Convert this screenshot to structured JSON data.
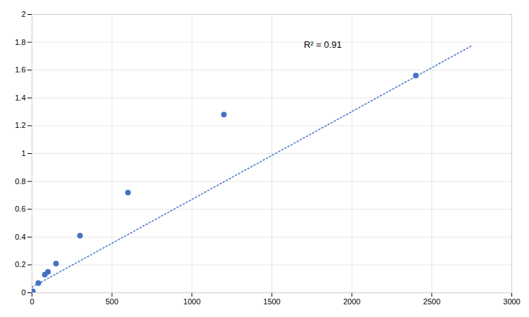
{
  "chart_data": {
    "type": "scatter",
    "x": [
      5,
      40,
      80,
      100,
      150,
      300,
      600,
      1200,
      2400
    ],
    "values": [
      0.01,
      0.07,
      0.13,
      0.15,
      0.21,
      0.41,
      0.72,
      1.28,
      1.56
    ],
    "color": "#4472C4",
    "trendline": {
      "x": [
        0,
        2750
      ],
      "values": [
        0.04,
        1.775
      ],
      "color": "#4472C4",
      "line_style": "dotted"
    },
    "annotations": [
      {
        "text": "R² = 0.91",
        "x": 1700,
        "y": 1.76
      }
    ],
    "xlim": [
      0,
      3000
    ],
    "ylim": [
      0,
      2.0
    ],
    "xticks": [
      0,
      500,
      1000,
      1500,
      2000,
      2500,
      3000
    ],
    "yticks": [
      0,
      0.2,
      0.4,
      0.6,
      0.8,
      1.0,
      1.2,
      1.4,
      1.6,
      1.8,
      2.0
    ],
    "grid": true
  }
}
